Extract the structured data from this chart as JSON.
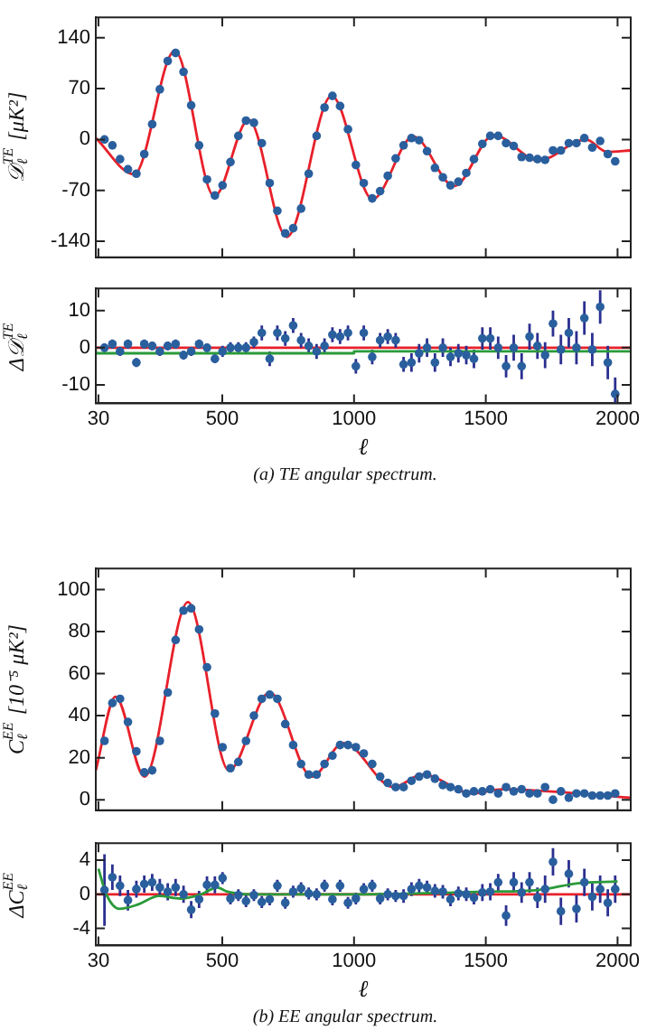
{
  "chart_data": [
    {
      "type": "scatter",
      "ylabel": "𝒟$_{ℓ}$$^{TE}$ [μK²]",
      "xlim": [
        20,
        2050
      ],
      "xticks": [
        30,
        500,
        1000,
        1500,
        2000
      ],
      "ylim": [
        -162,
        168
      ],
      "yticks": [
        140,
        70,
        0,
        -70,
        -140
      ],
      "tick_labels": "y",
      "grid": false,
      "legend": false,
      "x": [
        53,
        83,
        112,
        142,
        174,
        204,
        234,
        263,
        293,
        323,
        353,
        382,
        412,
        442,
        472,
        501,
        531,
        561,
        590,
        620,
        650,
        680,
        709,
        739,
        769,
        799,
        828,
        858,
        888,
        918,
        947,
        977,
        1007,
        1037,
        1069,
        1099,
        1128,
        1158,
        1188,
        1218,
        1247,
        1277,
        1307,
        1337,
        1366,
        1396,
        1426,
        1455,
        1487,
        1517,
        1547,
        1577,
        1606,
        1636,
        1666,
        1696,
        1725,
        1755,
        1785,
        1815,
        1844,
        1874,
        1904,
        1934,
        1963,
        1991
      ],
      "series": [
        {
          "type": "line",
          "color": "#e8202a",
          "marker": "none",
          "x": [
            20,
            165,
            320,
            470,
            600,
            745,
            915,
            1070,
            1225,
            1380,
            1530,
            1700,
            1880,
            1960,
            2050
          ],
          "values": [
            2,
            -48,
            122,
            -78,
            27,
            -134,
            60,
            -82,
            4,
            -64,
            6,
            -29,
            0,
            -17,
            -15
          ]
        },
        {
          "color": "#2a5f9e",
          "marker": "circle",
          "values": [
            0,
            -8,
            -27,
            -41,
            -47,
            -20,
            21,
            69,
            108,
            119,
            93,
            47,
            -8,
            -55,
            -77,
            -63,
            -31,
            5,
            26,
            23,
            -5,
            -60,
            -98,
            -129,
            -122,
            -95,
            -47,
            5,
            44,
            60,
            46,
            14,
            -35,
            -60,
            -81,
            -71,
            -50,
            -26,
            -8,
            2,
            -1,
            -16,
            -39,
            -52,
            -63,
            -58,
            -46,
            -27,
            -6,
            5,
            5,
            -5,
            -9,
            -24,
            -25,
            -27,
            -28,
            -15,
            -15,
            -5,
            -5,
            2,
            -11,
            -2,
            -20,
            -30
          ]
        }
      ]
    },
    {
      "type": "scatter",
      "ylabel": "Δ𝒟$_{ℓ}$$^{TE}$",
      "xlabel": "ℓ",
      "xlim": [
        20,
        2050
      ],
      "xticks": [
        30,
        500,
        1000,
        1500,
        2000
      ],
      "ylim": [
        -15,
        16
      ],
      "yticks": [
        10,
        0,
        -10
      ],
      "grid": false,
      "legend": false,
      "annotations": [
        "(a) TE angular spectrum."
      ],
      "ref_lines": [
        {
          "axis": "y",
          "value": 0,
          "color": "#e8202a"
        }
      ],
      "x": [
        53,
        83,
        112,
        142,
        174,
        204,
        234,
        263,
        293,
        323,
        353,
        382,
        412,
        442,
        472,
        501,
        531,
        561,
        590,
        620,
        650,
        680,
        709,
        739,
        769,
        799,
        828,
        858,
        888,
        918,
        947,
        977,
        1007,
        1037,
        1069,
        1099,
        1128,
        1158,
        1188,
        1218,
        1247,
        1277,
        1307,
        1337,
        1366,
        1396,
        1426,
        1455,
        1487,
        1517,
        1547,
        1577,
        1606,
        1636,
        1666,
        1696,
        1725,
        1755,
        1785,
        1815,
        1844,
        1874,
        1904,
        1934,
        1963,
        1991
      ],
      "series": [
        {
          "type": "step",
          "color": "#2a9a3a",
          "marker": "none",
          "x": [
            20,
            1000,
            1500,
            2050
          ],
          "values": [
            -0.5,
            -1.5,
            -1,
            -1
          ]
        },
        {
          "color": "#2a5f9e",
          "marker": "circle",
          "values": [
            0,
            1,
            -1,
            1,
            -4,
            1,
            0.5,
            -1,
            0.5,
            1,
            -2,
            -1,
            1,
            0,
            -3,
            -1,
            0,
            0,
            0,
            1.5,
            4,
            -3,
            4,
            2.5,
            6,
            2,
            0.5,
            -1,
            0.5,
            3.5,
            3,
            4,
            -5,
            4,
            -2.5,
            2,
            3,
            2,
            -4.5,
            -4,
            -1.5,
            0,
            -4,
            0,
            -2.5,
            -1.5,
            -2,
            -3,
            2.5,
            2.5,
            0,
            -5,
            0,
            -5,
            3,
            0.5,
            -2,
            6.5,
            -0.5,
            4,
            0,
            8,
            -0.5,
            11,
            -4,
            -12.5
          ],
          "errors": [
            1.2,
            1.2,
            1.2,
            1.2,
            1.2,
            1.2,
            1.2,
            1.2,
            1.2,
            1.2,
            1.2,
            1.2,
            1.2,
            1.2,
            1.2,
            1.5,
            1.5,
            1.5,
            1.5,
            1.5,
            2,
            2,
            2,
            2,
            2,
            2,
            2,
            2,
            2,
            2,
            2,
            2,
            2,
            2,
            2,
            2,
            2,
            2,
            2,
            2.5,
            2.5,
            2.5,
            2.5,
            2.5,
            2.5,
            2.5,
            2.5,
            2.5,
            3,
            3,
            3,
            3,
            3.5,
            3.5,
            3.5,
            3.5,
            3.5,
            3.5,
            4,
            4,
            4.5,
            4.5,
            4.5,
            4.5,
            4.5,
            [
              -15,
              -8
            ]
          ]
        }
      ]
    },
    {
      "type": "scatter",
      "ylabel": "C$_{ℓ}$$^{EE}$ [10⁻⁵ μK²]",
      "xlim": [
        20,
        2050
      ],
      "xticks": [
        30,
        500,
        1000,
        1500,
        2000
      ],
      "ylim": [
        -5,
        110
      ],
      "yticks": [
        0,
        20,
        40,
        60,
        80,
        100
      ],
      "tick_labels": "y",
      "grid": false,
      "legend": false,
      "x": [
        53,
        83,
        112,
        142,
        174,
        204,
        234,
        263,
        293,
        323,
        353,
        382,
        412,
        442,
        472,
        501,
        531,
        561,
        590,
        620,
        650,
        680,
        709,
        739,
        769,
        799,
        828,
        858,
        888,
        918,
        947,
        977,
        1007,
        1037,
        1069,
        1099,
        1128,
        1158,
        1188,
        1218,
        1247,
        1277,
        1307,
        1337,
        1366,
        1396,
        1426,
        1455,
        1487,
        1517,
        1547,
        1577,
        1606,
        1636,
        1666,
        1696,
        1725,
        1755,
        1785,
        1815,
        1844,
        1874,
        1904,
        1934,
        1963,
        1991
      ],
      "series": [
        {
          "type": "line",
          "color": "#e8202a",
          "marker": "none",
          "x": [
            20,
            95,
            205,
            370,
            525,
            680,
            840,
            960,
            1150,
            1260,
            1450,
            1560,
            2050
          ],
          "values": [
            14,
            49,
            11,
            94,
            14,
            51,
            11,
            27,
            6,
            12,
            3,
            5,
            1
          ]
        },
        {
          "color": "#2a5f9e",
          "marker": "circle",
          "values": [
            28,
            46,
            48,
            37,
            23,
            13,
            14,
            28,
            51,
            76,
            90,
            91,
            81,
            63,
            41,
            25,
            15,
            18,
            28,
            40,
            48,
            50,
            48,
            36,
            26,
            17,
            12,
            12,
            17,
            21,
            26,
            26,
            25,
            22,
            17,
            11,
            8,
            6,
            6,
            9,
            11,
            12,
            10,
            7,
            6,
            5,
            3,
            4,
            4,
            5,
            3,
            6,
            4,
            5,
            3,
            3,
            6,
            0,
            4,
            1,
            3,
            3,
            2,
            2,
            2,
            3
          ]
        }
      ]
    },
    {
      "type": "scatter",
      "ylabel": "ΔC$_{ℓ}$$^{EE}$",
      "xlabel": "ℓ",
      "xlim": [
        20,
        2050
      ],
      "xticks": [
        30,
        500,
        1000,
        1500,
        2000
      ],
      "ylim": [
        -6,
        6
      ],
      "yticks": [
        4,
        0,
        -4
      ],
      "grid": false,
      "legend": false,
      "annotations": [
        "(b) EE angular spectrum."
      ],
      "ref_lines": [
        {
          "axis": "y",
          "value": 0,
          "color": "#e8202a"
        }
      ],
      "x": [
        53,
        83,
        112,
        142,
        174,
        204,
        234,
        263,
        293,
        323,
        353,
        382,
        412,
        442,
        472,
        501,
        531,
        561,
        590,
        620,
        650,
        680,
        709,
        739,
        769,
        799,
        828,
        858,
        888,
        918,
        947,
        977,
        1007,
        1037,
        1069,
        1099,
        1128,
        1158,
        1188,
        1218,
        1247,
        1277,
        1307,
        1337,
        1366,
        1396,
        1426,
        1455,
        1487,
        1517,
        1547,
        1577,
        1606,
        1636,
        1666,
        1696,
        1725,
        1755,
        1785,
        1815,
        1844,
        1874,
        1904,
        1934,
        1963,
        1991
      ],
      "series": [
        {
          "type": "line",
          "color": "#2a9a3a",
          "marker": "none",
          "x": [
            30,
            60,
            110,
            180,
            260,
            340,
            420,
            480,
            520,
            600,
            1000,
            1500,
            1700,
            1850,
            2000
          ],
          "values": [
            3,
            0,
            -1.7,
            -1.2,
            -0.2,
            -0.5,
            0,
            0.8,
            0.3,
            0,
            0,
            0.3,
            0.5,
            1.3,
            1.5
          ]
        },
        {
          "color": "#2a5f9e",
          "marker": "circle",
          "values": [
            0.5,
            2,
            1,
            -0.7,
            0.6,
            1.2,
            1.4,
            0.8,
            0.3,
            0.8,
            0,
            -1.8,
            -0.6,
            1.1,
            1.1,
            1.9,
            -0.5,
            -0.1,
            -0.8,
            -0.1,
            -0.9,
            -0.6,
            1,
            -1,
            0.3,
            0.7,
            0.1,
            0,
            1,
            -0.6,
            1,
            -1,
            -0.5,
            0.6,
            1,
            -0.5,
            0,
            -0.2,
            -0.2,
            0.6,
            1,
            0.8,
            0.4,
            0.3,
            -0.6,
            0.1,
            0,
            -0.4,
            0.2,
            0.3,
            1.4,
            -2.5,
            1.4,
            0.2,
            1.4,
            -0.4,
            0.6,
            3.8,
            -2,
            2.4,
            -1.7,
            1.4,
            -0.3,
            0.6,
            -1,
            0.6
          ],
          "errors": [
            4.2,
            1.5,
            1.2,
            1.2,
            1,
            1,
            1,
            1,
            1,
            1,
            1,
            1,
            1,
            1,
            1,
            0.7,
            0.7,
            0.7,
            0.7,
            0.7,
            0.7,
            0.7,
            0.7,
            0.7,
            0.7,
            0.7,
            0.7,
            0.7,
            0.7,
            0.7,
            0.7,
            0.7,
            0.7,
            0.7,
            0.7,
            0.7,
            0.7,
            0.7,
            0.8,
            0.8,
            0.8,
            0.8,
            0.8,
            0.8,
            0.8,
            0.8,
            0.8,
            0.8,
            1,
            1,
            1,
            1.2,
            1.2,
            1.2,
            1.2,
            1.2,
            1.6,
            1.6,
            1.6,
            1.6,
            1.6,
            1.6,
            1.6,
            1.6,
            1.6,
            1.6
          ]
        }
      ]
    }
  ]
}
